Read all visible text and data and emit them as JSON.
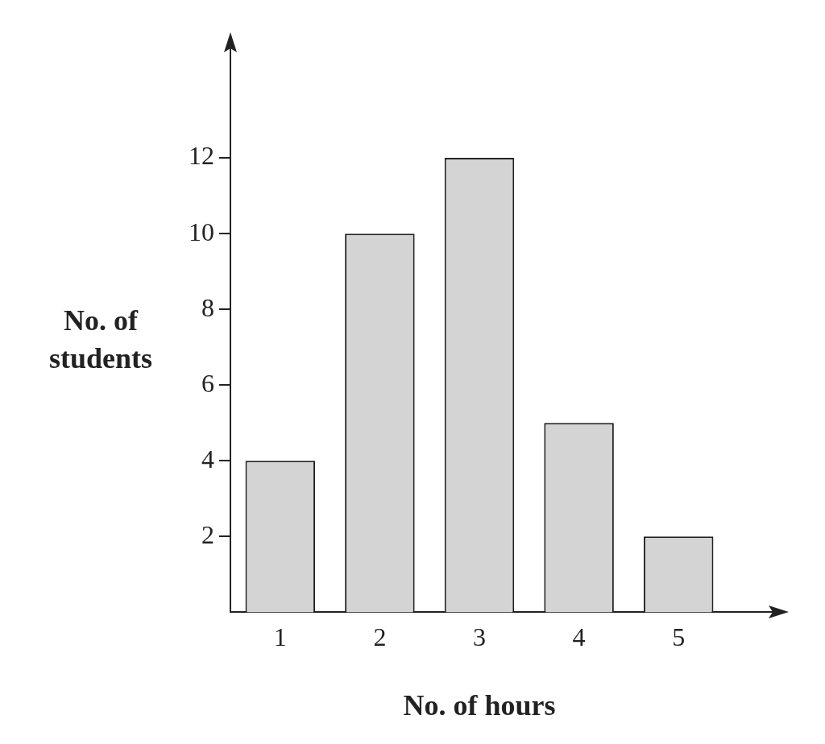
{
  "chart_data": {
    "type": "bar",
    "xlabel": "No. of hours",
    "ylabel": "No. of students",
    "categories": [
      "1",
      "2",
      "3",
      "4",
      "5"
    ],
    "values": [
      4,
      10,
      12,
      5,
      2
    ],
    "color": "#d4d4d4",
    "ylim": [
      0,
      15
    ],
    "yticks": [
      2,
      4,
      6,
      8,
      10,
      12
    ],
    "grid": false,
    "legend": false
  }
}
